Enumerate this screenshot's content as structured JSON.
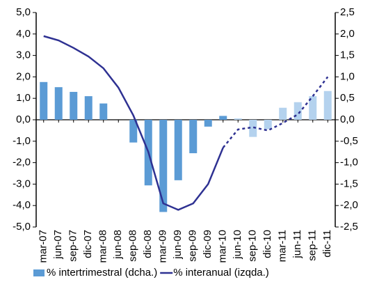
{
  "chart_data": {
    "type": "bar-line",
    "categories": [
      "mar-07",
      "jun-07",
      "sep-07",
      "dic-07",
      "mar-08",
      "jun-08",
      "sep-08",
      "dic-08",
      "mar-09",
      "jun-09",
      "sep-09",
      "dic-09",
      "mar-10",
      "jun-10",
      "sep-10",
      "dic-10",
      "mar-11",
      "jun-11",
      "sep-11",
      "dic-11"
    ],
    "series": [
      {
        "name": "% intertrimestral (dcha.)",
        "type": "bar",
        "axis": "y2",
        "color": "#5b9bd5",
        "forecast_color": "#b4d2ee",
        "values": [
          0.88,
          0.76,
          0.65,
          0.55,
          0.38,
          0,
          -0.53,
          -1.53,
          -2.15,
          -1.41,
          -0.78,
          -0.16,
          0.09,
          null,
          null,
          null,
          null,
          null,
          null,
          null
        ],
        "forecast_values": [
          null,
          null,
          null,
          null,
          null,
          null,
          null,
          null,
          null,
          null,
          null,
          null,
          null,
          0.03,
          -0.4,
          -0.22,
          0.28,
          0.41,
          0.55,
          0.67
        ]
      },
      {
        "name": "% interanual (izqda.)",
        "type": "line",
        "color": "#2e3192",
        "values": [
          3.9,
          3.7,
          3.35,
          2.95,
          2.4,
          1.5,
          0.2,
          -1.5,
          -3.9,
          -4.2,
          -3.9,
          -3.0,
          -1.3,
          null,
          null,
          null,
          null,
          null,
          null,
          null
        ],
        "forecast_values": [
          null,
          null,
          null,
          null,
          null,
          null,
          null,
          null,
          null,
          null,
          null,
          null,
          -1.3,
          -0.45,
          -0.35,
          -0.5,
          -0.15,
          0.25,
          1.1,
          2.0
        ]
      }
    ],
    "ylim": [
      -5,
      5
    ],
    "yticks": [
      {
        "value": 5,
        "label": "5,0"
      },
      {
        "value": 4,
        "label": "4,0"
      },
      {
        "value": 3,
        "label": "3,0"
      },
      {
        "value": 2,
        "label": "2,0"
      },
      {
        "value": 1,
        "label": "1,0"
      },
      {
        "value": 0,
        "label": "0,0"
      },
      {
        "value": -1,
        "label": "-1,0"
      },
      {
        "value": -2,
        "label": "-2,0"
      },
      {
        "value": -3,
        "label": "-3,0"
      },
      {
        "value": -4,
        "label": "-4,0"
      },
      {
        "value": -5,
        "label": "-5,0"
      }
    ],
    "y2lim": [
      -2.5,
      2.5
    ],
    "y2ticks": [
      {
        "value": 2.5,
        "label": "2,5"
      },
      {
        "value": 2,
        "label": "2,0"
      },
      {
        "value": 1.5,
        "label": "1,5"
      },
      {
        "value": 1,
        "label": "1,0"
      },
      {
        "value": 0.5,
        "label": "0,5"
      },
      {
        "value": 0,
        "label": "0,0"
      },
      {
        "value": -0.5,
        "label": "-0,5"
      },
      {
        "value": -1,
        "label": "-1,0"
      },
      {
        "value": -1.5,
        "label": "-1,5"
      },
      {
        "value": -2,
        "label": "-2,0"
      },
      {
        "value": -2.5,
        "label": "-2,5"
      }
    ]
  }
}
